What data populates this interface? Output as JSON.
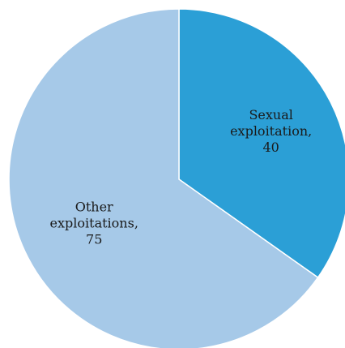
{
  "chart_data": {
    "type": "pie",
    "slices": [
      {
        "label_lines": [
          "Sexual",
          "exploitation,",
          "40"
        ],
        "value": 40,
        "color": "#2b9fd6"
      },
      {
        "label_lines": [
          "Other",
          "exploitations,",
          "75"
        ],
        "value": 75,
        "color": "#a6c9e8"
      }
    ],
    "start_angle_deg": 0,
    "direction": "clockwise"
  }
}
